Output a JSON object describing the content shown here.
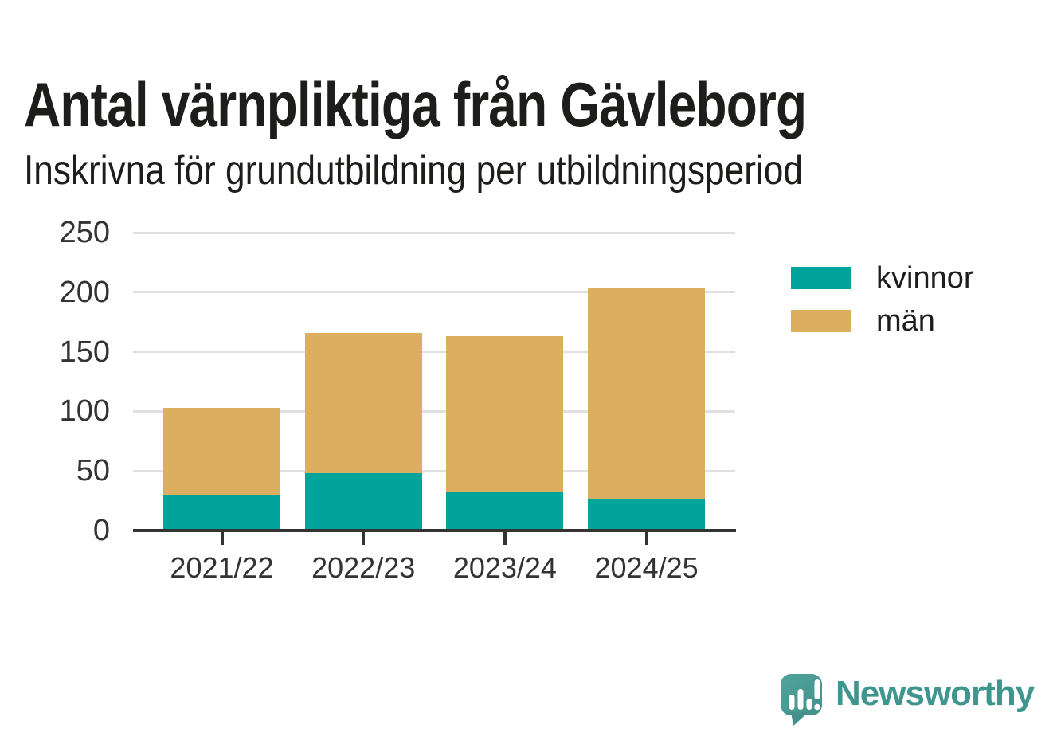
{
  "chart": {
    "title": "Antal värnpliktiga från Gävleborg",
    "subtitle": "Inskrivna för grundutbildning per utbildningsperiod"
  },
  "chart_data": {
    "type": "bar",
    "stacked": true,
    "title": "Antal värnpliktiga från Gävleborg",
    "subtitle": "Inskrivna för grundutbildning per utbildningsperiod",
    "categories": [
      "2021/22",
      "2022/23",
      "2023/24",
      "2024/25"
    ],
    "series": [
      {
        "name": "kvinnor",
        "color": "#00a49b",
        "values": [
          30,
          48,
          32,
          26
        ]
      },
      {
        "name": "män",
        "color": "#dcae5f",
        "values": [
          73,
          118,
          131,
          177
        ]
      }
    ],
    "totals": [
      103,
      166,
      163,
      203
    ],
    "xlabel": "",
    "ylabel": "",
    "ylim": [
      0,
      250
    ],
    "yticks": [
      0,
      50,
      100,
      150,
      200,
      250
    ],
    "grid": "horizontal",
    "legend_position": "right"
  },
  "branding": {
    "logo_text": "Newsworthy",
    "logo_icon": "newsworthy-speech-bubble-bar-chart-icon",
    "logo_color": "#3f968f"
  },
  "colors": {
    "bar_kvinnor": "#00a49b",
    "bar_man": "#dcae5f",
    "axis": "#333333",
    "gridline": "#e0e0e0",
    "text": "#1d1d1b"
  }
}
